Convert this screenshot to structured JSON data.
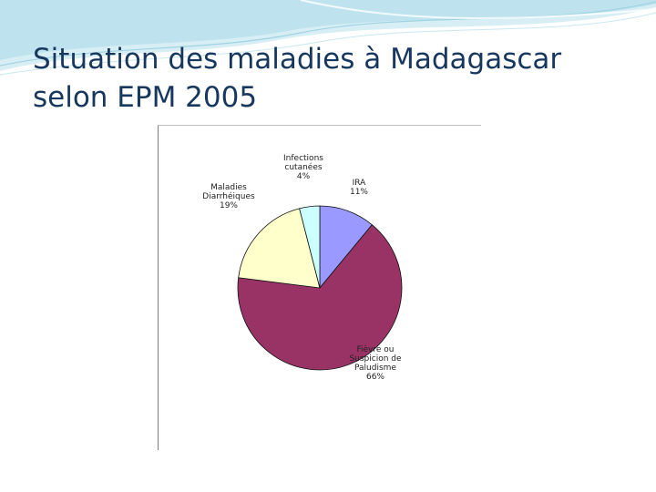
{
  "slide": {
    "title_line1": "Situation des maladies à Madagascar",
    "title_line2": "selon EPM 2005"
  },
  "colors": {
    "title": "#17375e",
    "header_wave": "#bfe3ee"
  },
  "chart_data": {
    "type": "pie",
    "title": "",
    "slices": [
      {
        "label_lines": [
          "IRA"
        ],
        "percent_text": "11%",
        "value": 11,
        "color": "#9999ff"
      },
      {
        "label_lines": [
          "Fièvre ou",
          "Suspicion de",
          "Paludisme"
        ],
        "percent_text": "66%",
        "value": 66,
        "color": "#993366"
      },
      {
        "label_lines": [
          "Maladies",
          "Diarrhéiques"
        ],
        "percent_text": "19%",
        "value": 19,
        "color": "#ffffcc"
      },
      {
        "label_lines": [
          "Infections",
          "cutanées"
        ],
        "percent_text": "4%",
        "value": 4,
        "color": "#ccffff"
      }
    ],
    "legend": "none"
  }
}
